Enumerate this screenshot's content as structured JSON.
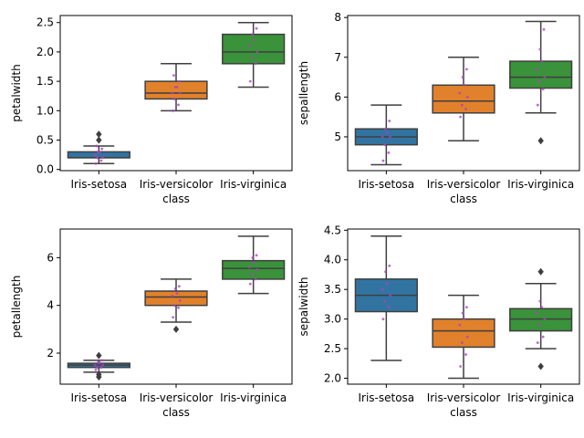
{
  "chart_data": [
    {
      "type": "box",
      "xlabel": "class",
      "ylabel": "petalwidth",
      "categories": [
        "Iris-setosa",
        "Iris-versicolor",
        "Iris-virginica"
      ],
      "colors": [
        "#3274a1",
        "#e1812c",
        "#3a923a"
      ],
      "ylim": [
        -0.02,
        2.62
      ],
      "yticks": [
        0.0,
        0.5,
        1.0,
        1.5,
        2.0,
        2.5
      ],
      "ytick_labels": [
        "0.0",
        "0.5",
        "1.0",
        "1.5",
        "2.0",
        "2.5"
      ],
      "boxes": [
        {
          "min": 0.1,
          "q1": 0.2,
          "median": 0.2,
          "q3": 0.3,
          "max": 0.4,
          "outliers": [
            0.5,
            0.6
          ]
        },
        {
          "min": 1.0,
          "q1": 1.2,
          "median": 1.3,
          "q3": 1.5,
          "max": 1.8,
          "outliers": []
        },
        {
          "min": 1.4,
          "q1": 1.8,
          "median": 2.0,
          "q3": 2.3,
          "max": 2.5,
          "outliers": []
        }
      ],
      "points": [
        [
          0.1,
          0.15,
          0.2,
          0.2,
          0.25,
          0.3,
          0.3,
          0.35,
          0.4
        ],
        [
          1.0,
          1.1,
          1.2,
          1.3,
          1.3,
          1.4,
          1.4,
          1.5,
          1.6
        ],
        [
          1.5,
          1.8,
          1.9,
          2.0,
          2.1,
          2.2,
          2.3,
          2.4
        ]
      ]
    },
    {
      "type": "box",
      "xlabel": "class",
      "ylabel": "sepallength",
      "categories": [
        "Iris-setosa",
        "Iris-versicolor",
        "Iris-virginica"
      ],
      "colors": [
        "#3274a1",
        "#e1812c",
        "#3a923a"
      ],
      "ylim": [
        4.15,
        8.05
      ],
      "yticks": [
        5,
        6,
        7,
        8
      ],
      "ytick_labels": [
        "5",
        "6",
        "7",
        "8"
      ],
      "boxes": [
        {
          "min": 4.3,
          "q1": 4.8,
          "median": 5.0,
          "q3": 5.2,
          "max": 5.8,
          "outliers": []
        },
        {
          "min": 4.9,
          "q1": 5.6,
          "median": 5.9,
          "q3": 6.3,
          "max": 7.0,
          "outliers": []
        },
        {
          "min": 5.6,
          "q1": 6.225,
          "median": 6.5,
          "q3": 6.9,
          "max": 7.9,
          "outliers": [
            4.9
          ]
        }
      ],
      "points": [
        [
          4.4,
          4.6,
          4.8,
          5.0,
          5.0,
          5.1,
          5.2,
          5.4
        ],
        [
          5.5,
          5.7,
          5.8,
          6.0,
          6.1,
          6.3,
          6.5,
          6.7
        ],
        [
          5.8,
          6.2,
          6.4,
          6.5,
          6.7,
          6.9,
          7.2,
          7.7
        ]
      ]
    },
    {
      "type": "box",
      "xlabel": "class",
      "ylabel": "petallength",
      "categories": [
        "Iris-setosa",
        "Iris-versicolor",
        "Iris-virginica"
      ],
      "colors": [
        "#3274a1",
        "#e1812c",
        "#3a923a"
      ],
      "ylim": [
        0.7,
        7.2
      ],
      "yticks": [
        2,
        4,
        6
      ],
      "ytick_labels": [
        "2",
        "4",
        "6"
      ],
      "boxes": [
        {
          "min": 1.2,
          "q1": 1.4,
          "median": 1.5,
          "q3": 1.575,
          "max": 1.7,
          "outliers": [
            1.0,
            1.1,
            1.9
          ]
        },
        {
          "min": 3.3,
          "q1": 4.0,
          "median": 4.35,
          "q3": 4.6,
          "max": 5.1,
          "outliers": [
            3.0
          ]
        },
        {
          "min": 4.5,
          "q1": 5.1,
          "median": 5.55,
          "q3": 5.875,
          "max": 6.9,
          "outliers": []
        }
      ],
      "points": [
        [
          1.3,
          1.4,
          1.4,
          1.5,
          1.5,
          1.6,
          1.6,
          1.7
        ],
        [
          3.5,
          3.9,
          4.0,
          4.2,
          4.4,
          4.5,
          4.7,
          4.8
        ],
        [
          4.9,
          5.1,
          5.3,
          5.5,
          5.6,
          5.8,
          6.0,
          6.1
        ]
      ]
    },
    {
      "type": "box",
      "xlabel": "class",
      "ylabel": "sepalwidth",
      "categories": [
        "Iris-setosa",
        "Iris-versicolor",
        "Iris-virginica"
      ],
      "colors": [
        "#3274a1",
        "#e1812c",
        "#3a923a"
      ],
      "ylim": [
        1.9,
        4.52
      ],
      "yticks": [
        2.0,
        2.5,
        3.0,
        3.5,
        4.0,
        4.5
      ],
      "ytick_labels": [
        "2.0",
        "2.5",
        "3.0",
        "3.5",
        "4.0",
        "4.5"
      ],
      "boxes": [
        {
          "min": 2.3,
          "q1": 3.125,
          "median": 3.4,
          "q3": 3.675,
          "max": 4.4,
          "outliers": []
        },
        {
          "min": 2.0,
          "q1": 2.525,
          "median": 2.8,
          "q3": 3.0,
          "max": 3.4,
          "outliers": []
        },
        {
          "min": 2.5,
          "q1": 2.8,
          "median": 3.0,
          "q3": 3.175,
          "max": 3.6,
          "outliers": [
            2.2,
            3.8
          ]
        }
      ],
      "points": [
        [
          3.0,
          3.2,
          3.3,
          3.4,
          3.5,
          3.6,
          3.8,
          3.9
        ],
        [
          2.2,
          2.4,
          2.6,
          2.7,
          2.9,
          3.0,
          3.1,
          3.2
        ],
        [
          2.6,
          2.7,
          2.9,
          3.0,
          3.1,
          3.2,
          3.3
        ]
      ]
    }
  ]
}
